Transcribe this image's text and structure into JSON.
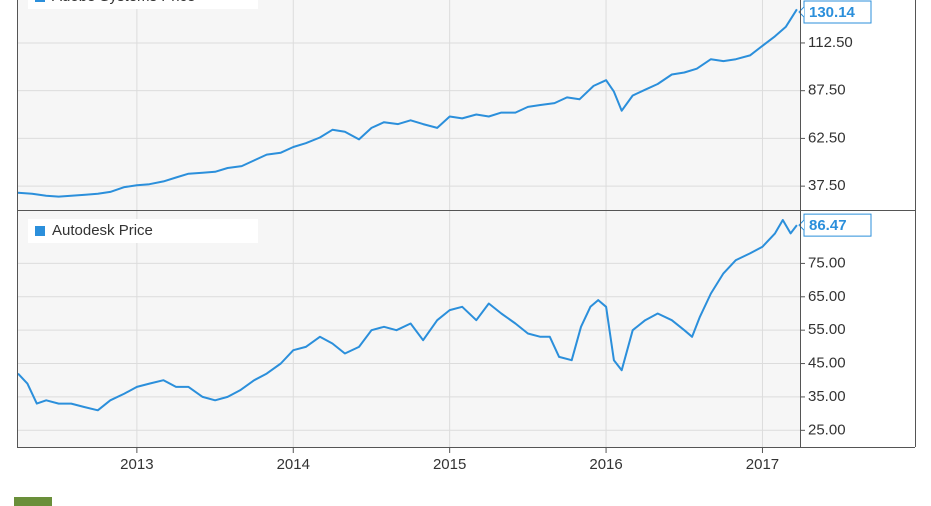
{
  "chart_data": [
    {
      "type": "line",
      "log_scale": false,
      "grid": true,
      "legend": "top-left",
      "xlim": [
        2012.24,
        2017.24
      ],
      "xticks": [
        2013,
        2014,
        2015,
        2016,
        2017
      ],
      "ylim": [
        25,
        135
      ],
      "yticks": [
        {
          "value": 37.5,
          "label": "37.50"
        },
        {
          "value": 62.5,
          "label": "62.50"
        },
        {
          "value": 87.5,
          "label": "87.50"
        },
        {
          "value": 112.5,
          "label": "112.50"
        }
      ],
      "x": [
        2012.24,
        2012.33,
        2012.42,
        2012.5,
        2012.58,
        2012.67,
        2012.75,
        2012.83,
        2012.92,
        2013.0,
        2013.08,
        2013.17,
        2013.25,
        2013.33,
        2013.42,
        2013.5,
        2013.58,
        2013.67,
        2013.75,
        2013.83,
        2013.92,
        2014.0,
        2014.08,
        2014.17,
        2014.25,
        2014.33,
        2014.42,
        2014.5,
        2014.58,
        2014.67,
        2014.75,
        2014.83,
        2014.92,
        2015.0,
        2015.08,
        2015.17,
        2015.25,
        2015.33,
        2015.42,
        2015.5,
        2015.58,
        2015.67,
        2015.75,
        2015.83,
        2015.92,
        2016.0,
        2016.05,
        2016.1,
        2016.17,
        2016.25,
        2016.33,
        2016.42,
        2016.5,
        2016.58,
        2016.67,
        2016.75,
        2016.83,
        2016.92,
        2017.0,
        2017.08,
        2017.15,
        2017.22
      ],
      "series": [
        {
          "name": "Adobe Systems Price",
          "color": "#2b8fdb",
          "values": [
            34,
            33.5,
            32.5,
            32,
            32.5,
            33,
            33.5,
            34.5,
            37,
            38,
            38.5,
            40,
            42,
            44,
            44.5,
            45,
            47,
            48,
            51,
            54,
            55,
            58,
            60,
            63,
            67,
            66,
            62,
            68,
            71,
            70,
            72,
            70,
            68,
            74,
            73,
            75,
            74,
            76,
            76,
            79,
            80,
            81,
            84,
            83,
            90,
            93,
            87,
            77,
            85,
            88,
            91,
            96,
            97,
            99,
            104,
            103,
            104,
            106,
            111,
            116,
            121,
            130.14
          ]
        }
      ]
    },
    {
      "type": "line",
      "log_scale": false,
      "grid": true,
      "legend": "top-left",
      "xlim": [
        2012.24,
        2017.24
      ],
      "xticks": [
        2013,
        2014,
        2015,
        2016,
        2017
      ],
      "ylim": [
        20,
        91
      ],
      "yticks": [
        {
          "value": 25,
          "label": "25.00"
        },
        {
          "value": 35,
          "label": "35.00"
        },
        {
          "value": 45,
          "label": "45.00"
        },
        {
          "value": 55,
          "label": "55.00"
        },
        {
          "value": 65,
          "label": "65.00"
        },
        {
          "value": 75,
          "label": "75.00"
        }
      ],
      "x": [
        2012.24,
        2012.3,
        2012.36,
        2012.42,
        2012.5,
        2012.58,
        2012.66,
        2012.75,
        2012.83,
        2012.92,
        2013.0,
        2013.08,
        2013.17,
        2013.25,
        2013.33,
        2013.42,
        2013.5,
        2013.58,
        2013.66,
        2013.75,
        2013.83,
        2013.92,
        2014.0,
        2014.08,
        2014.17,
        2014.25,
        2014.33,
        2014.42,
        2014.5,
        2014.58,
        2014.66,
        2014.75,
        2014.83,
        2014.92,
        2015.0,
        2015.08,
        2015.17,
        2015.25,
        2015.33,
        2015.42,
        2015.5,
        2015.58,
        2015.64,
        2015.7,
        2015.78,
        2015.84,
        2015.9,
        2015.95,
        2016.0,
        2016.05,
        2016.1,
        2016.17,
        2016.25,
        2016.33,
        2016.42,
        2016.5,
        2016.55,
        2016.6,
        2016.67,
        2016.75,
        2016.83,
        2016.92,
        2017.0,
        2017.08,
        2017.13,
        2017.18,
        2017.22
      ],
      "series": [
        {
          "name": "Autodesk Price",
          "color": "#2b8fdb",
          "values": [
            42,
            39,
            33,
            34,
            33,
            33,
            32,
            31,
            34,
            36,
            38,
            39,
            40,
            38,
            38,
            35,
            34,
            35,
            37,
            40,
            42,
            45,
            49,
            50,
            53,
            51,
            48,
            50,
            55,
            56,
            55,
            57,
            52,
            58,
            61,
            62,
            58,
            63,
            60,
            57,
            54,
            53,
            53,
            47,
            46,
            56,
            62,
            64,
            62,
            46,
            43,
            55,
            58,
            60,
            58,
            55,
            53,
            59,
            66,
            72,
            76,
            78,
            80,
            84,
            88,
            84,
            86.47
          ]
        }
      ]
    }
  ]
}
